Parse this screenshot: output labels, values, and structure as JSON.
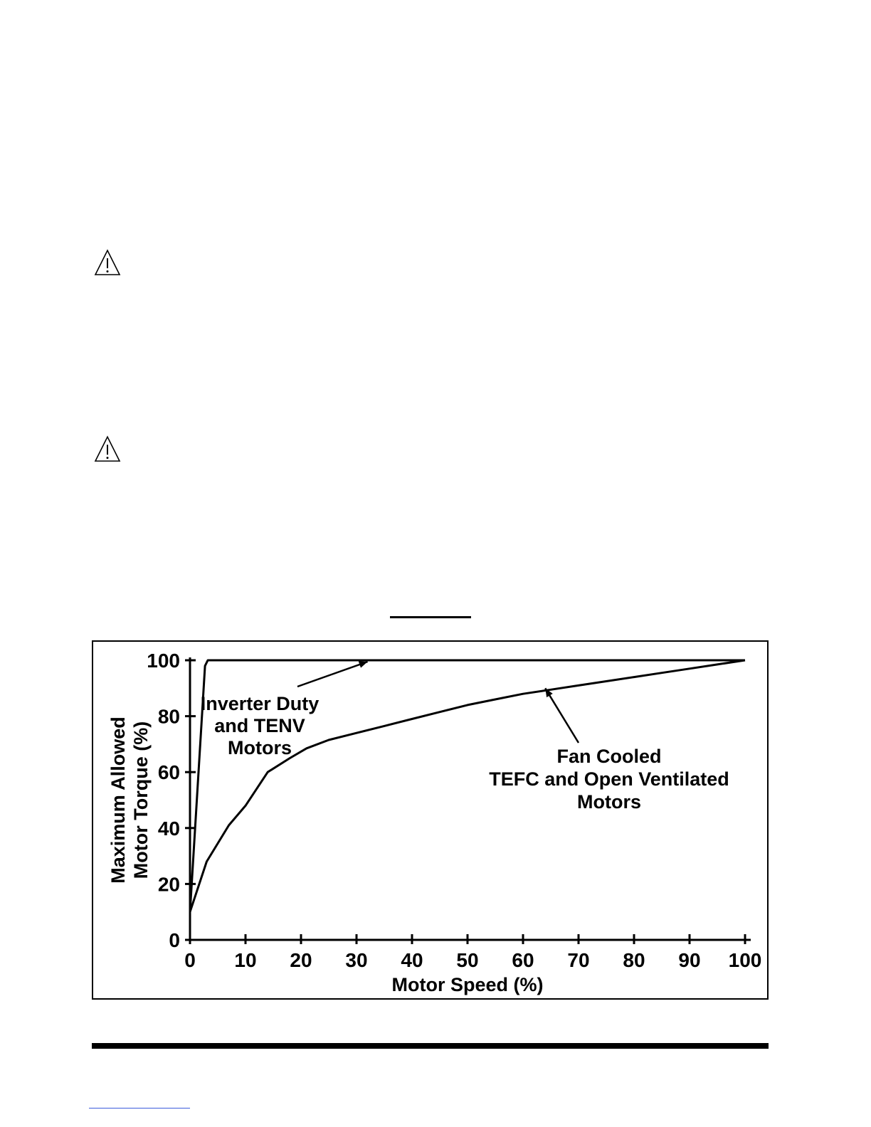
{
  "chart_data": {
    "type": "line",
    "xlabel": "Motor Speed (%)",
    "ylabel_lines": [
      "Maximum Allowed",
      "Motor Torque (%)"
    ],
    "xlim": [
      0,
      100
    ],
    "ylim": [
      0,
      100
    ],
    "x_ticks": [
      0,
      10,
      20,
      30,
      40,
      50,
      60,
      70,
      80,
      90,
      100
    ],
    "y_ticks": [
      0,
      20,
      40,
      60,
      80,
      100
    ],
    "grid": false,
    "legend": "none",
    "series": [
      {
        "x": [
          0,
          2.7,
          3.2,
          100
        ],
        "y": [
          10,
          98,
          100,
          100
        ]
      },
      {
        "x": [
          0,
          3,
          7,
          10,
          14,
          18,
          21,
          25,
          30,
          35,
          40,
          45,
          50,
          55,
          60,
          65,
          70,
          75,
          80,
          85,
          90,
          95,
          100
        ],
        "y": [
          10,
          28,
          41,
          48,
          60,
          65,
          68.5,
          71.5,
          74,
          76.5,
          79,
          81.5,
          84,
          86,
          88,
          89.5,
          91,
          92.5,
          94,
          95.5,
          97,
          98.5,
          100
        ]
      }
    ],
    "annotations": [
      {
        "lines": [
          "Inverter Duty",
          "and TENV",
          "Motors"
        ],
        "arrow_to": [
          32,
          100
        ]
      },
      {
        "lines": [
          "Fan Cooled",
          "TEFC and Open Ventilated",
          "Motors"
        ],
        "arrow_to": [
          64,
          90.5
        ]
      }
    ]
  }
}
